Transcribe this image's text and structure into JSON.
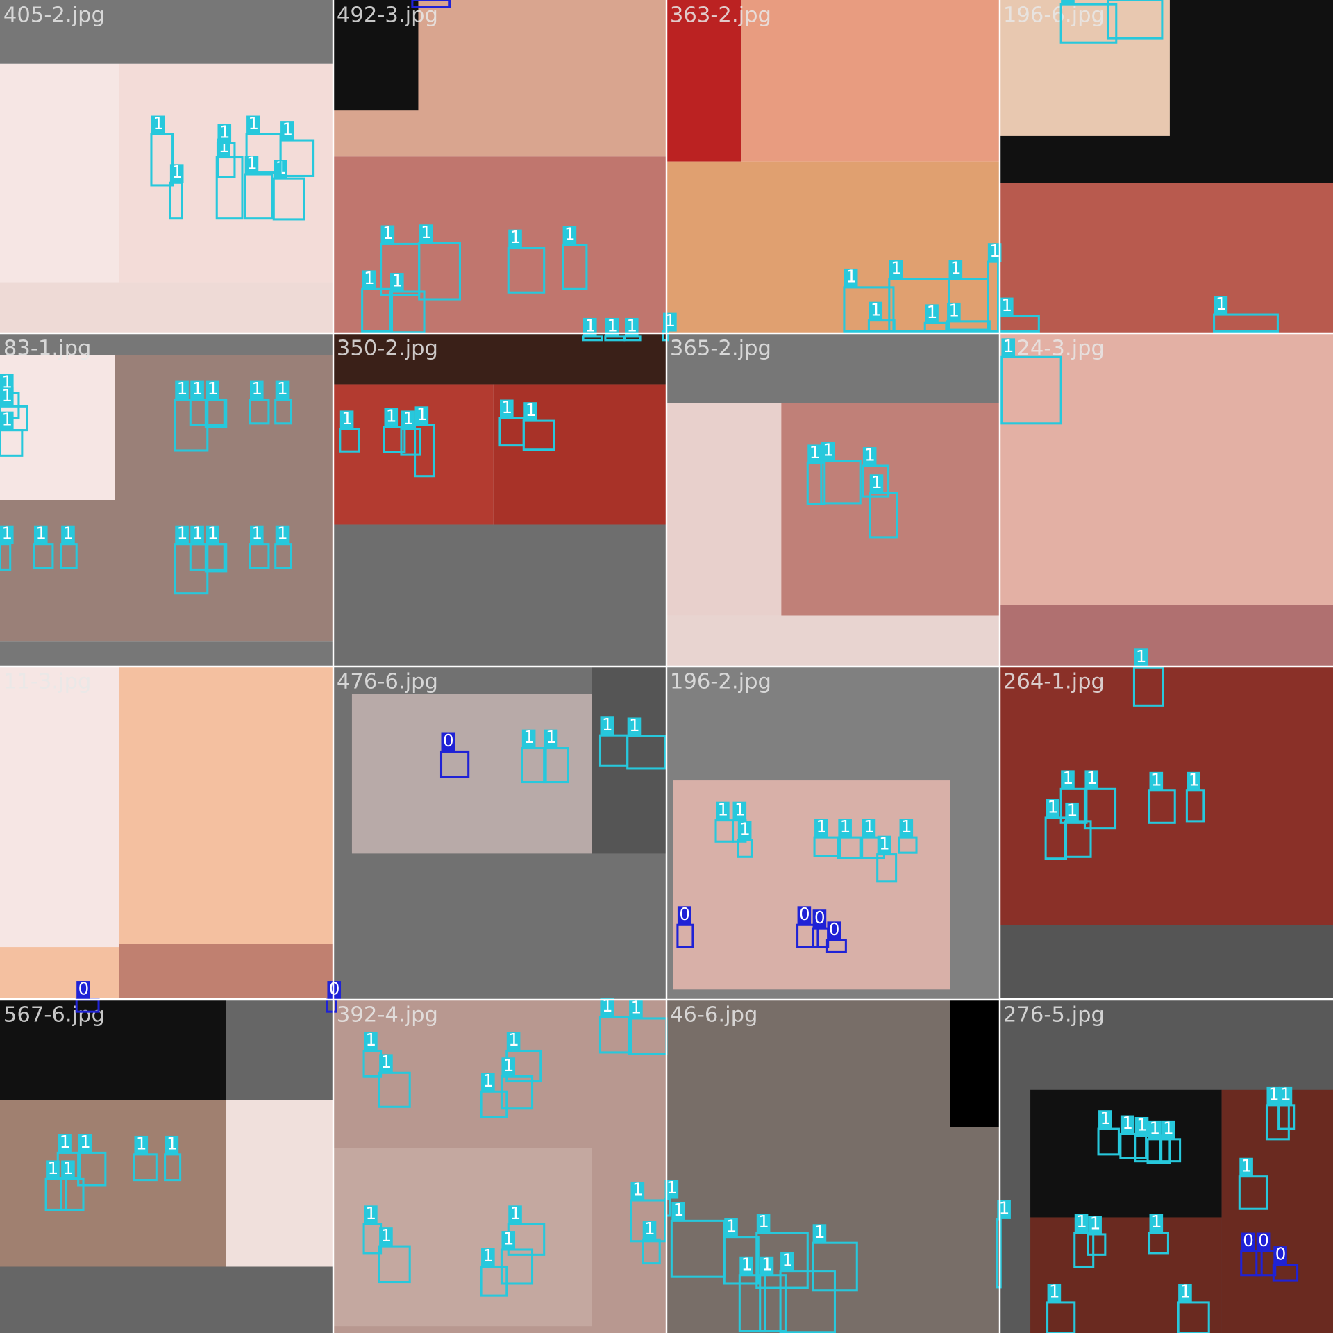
{
  "tiles": [
    {
      "filename": "405-2.jpg",
      "boxes": [
        "1",
        "1",
        "1",
        "1",
        "1",
        "1",
        "1",
        "1"
      ]
    },
    {
      "filename": "492-3.jpg",
      "boxes": [
        "0",
        "1",
        "1",
        "1",
        "1",
        "1",
        "1",
        "1",
        "1",
        "1",
        "1"
      ]
    },
    {
      "filename": "363-2.jpg",
      "boxes": [
        "1",
        "1",
        "1",
        "1",
        "1",
        "1",
        "1"
      ]
    },
    {
      "filename": "196-6.jpg",
      "boxes": [
        "1",
        "1",
        "1",
        "1"
      ]
    },
    {
      "filename": "83-1.jpg",
      "boxes": [
        "1",
        "1",
        "1",
        "1",
        "1",
        "1",
        "1",
        "1",
        "1",
        "1",
        "1",
        "1",
        "1",
        "1",
        "1",
        "1"
      ]
    },
    {
      "filename": "350-2.jpg",
      "boxes": [
        "1",
        "1",
        "1",
        "1",
        "1",
        "1"
      ]
    },
    {
      "filename": "365-2.jpg",
      "boxes": [
        "1",
        "1",
        "1",
        "1"
      ]
    },
    {
      "filename": "224-3.jpg",
      "boxes": [
        "1"
      ]
    },
    {
      "filename": "11-3.jpg",
      "boxes": [
        "0",
        "0"
      ]
    },
    {
      "filename": "476-6.jpg",
      "boxes": [
        "0",
        "1",
        "1",
        "1",
        "1"
      ]
    },
    {
      "filename": "196-2.jpg",
      "boxes": [
        "1",
        "1",
        "1",
        "1",
        "1",
        "1",
        "1",
        "1",
        "0",
        "0",
        "0",
        "0"
      ]
    },
    {
      "filename": "264-1.jpg",
      "boxes": [
        "1",
        "1",
        "1",
        "1",
        "1",
        "1",
        "1"
      ]
    },
    {
      "filename": "567-6.jpg",
      "boxes": [
        "1",
        "1",
        "1",
        "1",
        "1",
        "1"
      ]
    },
    {
      "filename": "392-4.jpg",
      "boxes": [
        "1",
        "1",
        "1",
        "1",
        "1",
        "1",
        "1",
        "1",
        "1",
        "1",
        "1",
        "1",
        "1",
        "1",
        "1"
      ]
    },
    {
      "filename": "46-6.jpg",
      "boxes": [
        "1",
        "1",
        "1",
        "1",
        "1",
        "1",
        "1",
        "1"
      ]
    },
    {
      "filename": "276-5.jpg",
      "boxes": [
        "1",
        "1",
        "1",
        "1",
        "1",
        "1",
        "1",
        "1",
        "1",
        "1",
        "1",
        "1",
        "1",
        "0",
        "0",
        "0"
      ]
    }
  ]
}
